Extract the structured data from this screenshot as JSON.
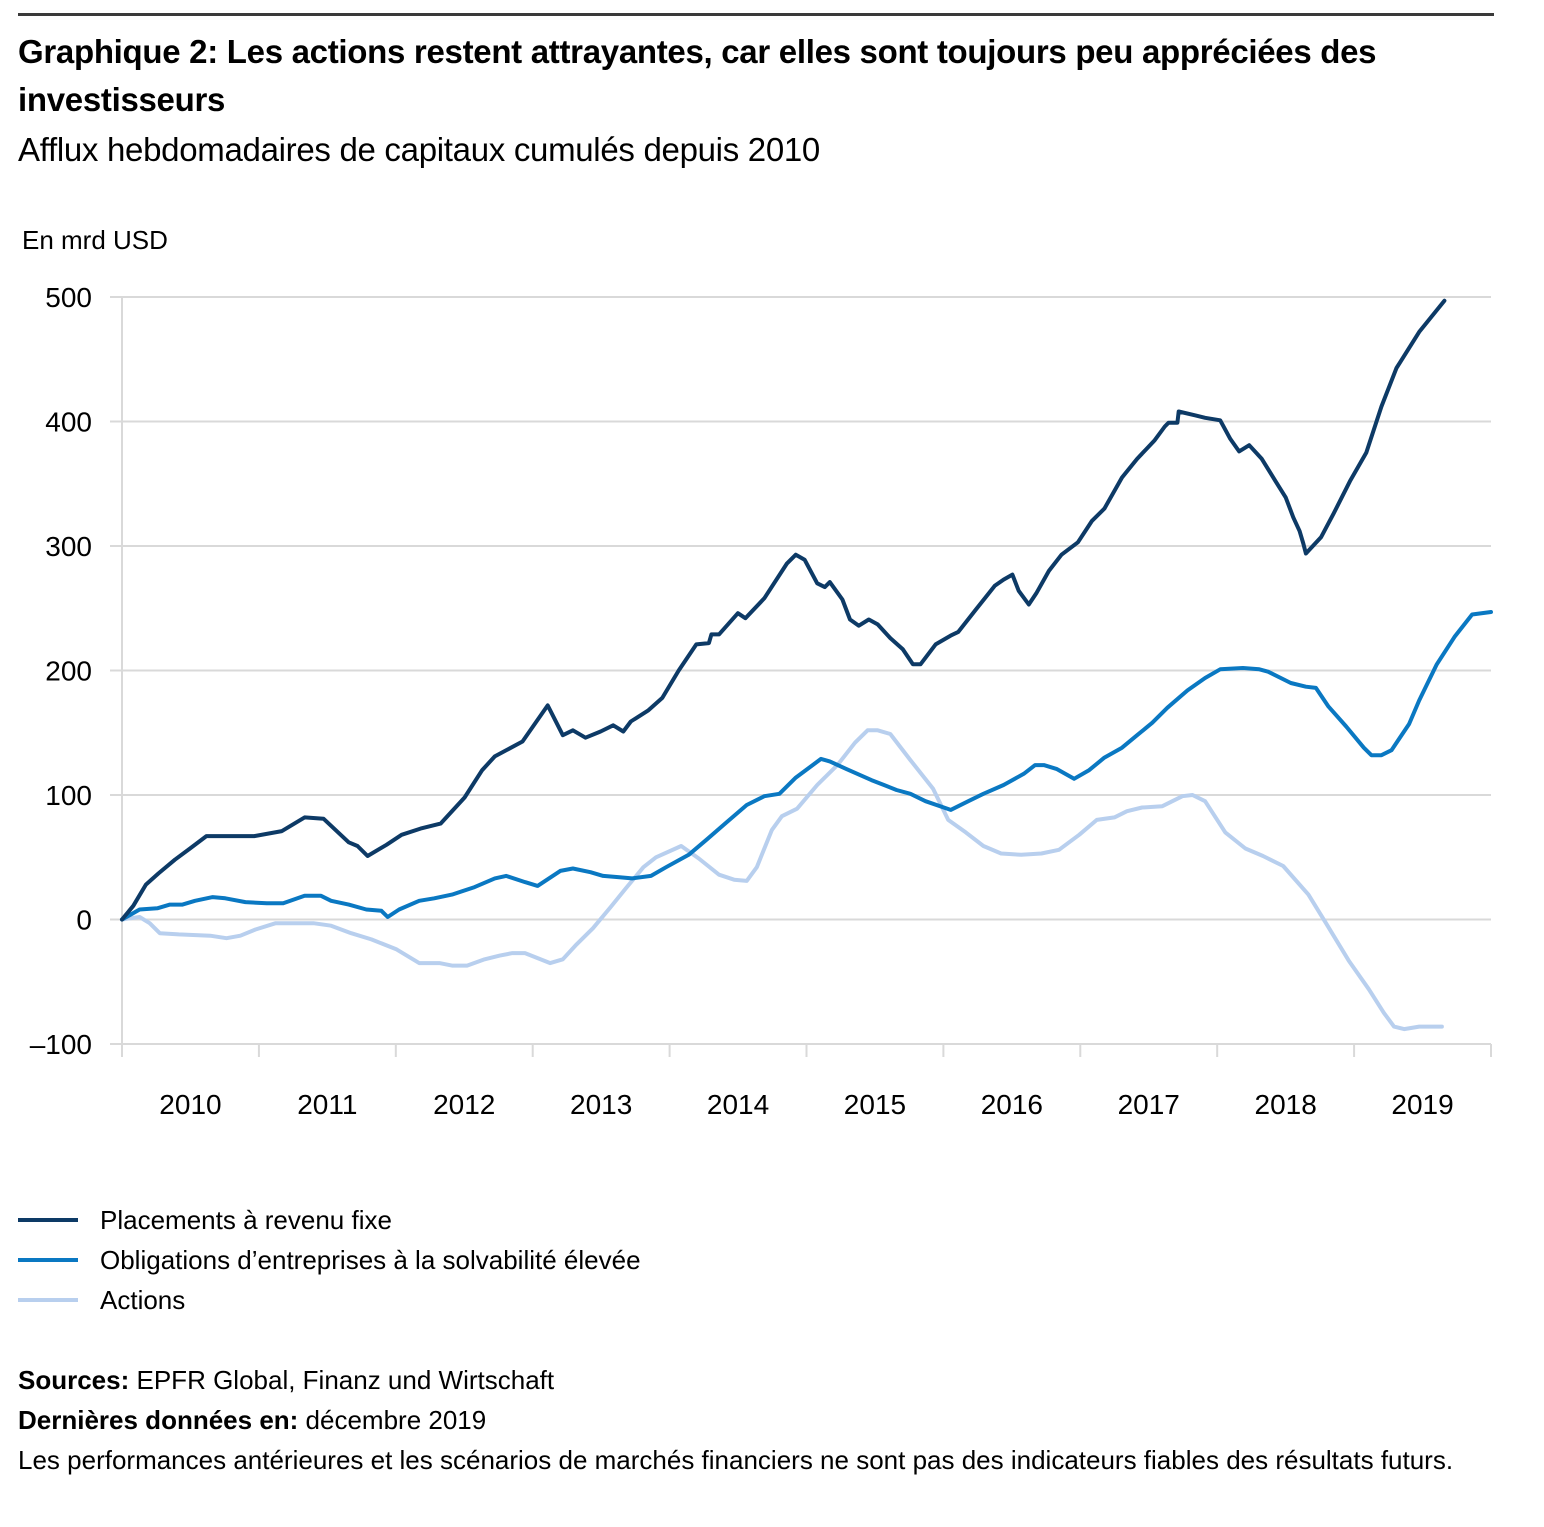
{
  "header": {
    "title": "Graphique 2: Les actions restent attrayantes, car elles sont toujours peu appréciées des investisseurs",
    "subtitle": "Afflux hebdomadaires de capitaux cumulés depuis 2010",
    "unit_label": "En mrd USD"
  },
  "footer": {
    "sources_label": "Sources:",
    "sources_value": "EPFR Global, Finanz und Wirtschaft",
    "latest_label": "Dernières données en:",
    "latest_value": "décembre 2019",
    "disclaimer": "Les performances antérieures et les scénarios de marchés financiers ne sont pas des indicateurs fiables des résultats futurs."
  },
  "chart_data": {
    "type": "line",
    "title": "Graphique 2: Les actions restent attrayantes, car elles sont toujours peu appréciées des investisseurs",
    "subtitle": "Afflux hebdomadaires de capitaux cumulés depuis 2010",
    "xlabel": "",
    "ylabel": "En mrd USD",
    "xlim": [
      2010.0,
      2020.0
    ],
    "ylim": [
      -100,
      500
    ],
    "yticks": [
      -100,
      0,
      100,
      200,
      300,
      400,
      500
    ],
    "ytick_labels": [
      "–100",
      "0",
      "100",
      "200",
      "300",
      "400",
      "500"
    ],
    "xticks": [
      2010,
      2011,
      2012,
      2013,
      2014,
      2015,
      2016,
      2017,
      2018,
      2019,
      2020
    ],
    "xtick_labels": [
      "2010",
      "2011",
      "2012",
      "2013",
      "2014",
      "2015",
      "2016",
      "2017",
      "2018",
      "2019"
    ],
    "grid": "horizontal",
    "legend_position": "bottom-left",
    "series": [
      {
        "name": "Placements à revenu fixe",
        "color": "#0d3a66",
        "points": [
          [
            2010.0,
            0
          ],
          [
            2010.09,
            11
          ],
          [
            2010.19,
            28
          ],
          [
            2010.29,
            37
          ],
          [
            2010.42,
            48
          ],
          [
            2010.54,
            57
          ],
          [
            2010.67,
            67
          ],
          [
            2010.85,
            67
          ],
          [
            2011.05,
            67
          ],
          [
            2011.27,
            71
          ],
          [
            2011.45,
            82
          ],
          [
            2011.6,
            81
          ],
          [
            2011.8,
            62
          ],
          [
            2011.87,
            59
          ],
          [
            2011.95,
            51
          ],
          [
            2012.1,
            60
          ],
          [
            2012.22,
            68
          ],
          [
            2012.37,
            73
          ],
          [
            2012.53,
            77
          ],
          [
            2012.72,
            98
          ],
          [
            2012.86,
            120
          ],
          [
            2012.96,
            131
          ],
          [
            2013.18,
            143
          ],
          [
            2013.38,
            172
          ],
          [
            2013.5,
            148
          ],
          [
            2013.58,
            152
          ],
          [
            2013.68,
            146
          ],
          [
            2013.8,
            151
          ],
          [
            2013.9,
            156
          ],
          [
            2013.98,
            151
          ],
          [
            2014.04,
            159
          ],
          [
            2014.18,
            168
          ],
          [
            2014.29,
            178
          ],
          [
            2014.42,
            200
          ],
          [
            2014.56,
            221
          ],
          [
            2014.66,
            222
          ],
          [
            2014.68,
            229
          ],
          [
            2014.74,
            229
          ],
          [
            2014.89,
            246
          ],
          [
            2014.95,
            242
          ],
          [
            2015.1,
            258
          ],
          [
            2015.28,
            286
          ],
          [
            2015.35,
            293
          ],
          [
            2015.42,
            289
          ],
          [
            2015.52,
            270
          ],
          [
            2015.58,
            267
          ],
          [
            2015.62,
            271
          ],
          [
            2015.72,
            257
          ],
          [
            2015.78,
            241
          ],
          [
            2015.85,
            236
          ],
          [
            2015.93,
            241
          ],
          [
            2016.0,
            237
          ],
          [
            2016.1,
            226
          ],
          [
            2016.2,
            217
          ],
          [
            2016.28,
            205
          ],
          [
            2016.34,
            205
          ],
          [
            2016.46,
            221
          ],
          [
            2016.58,
            228
          ],
          [
            2016.64,
            231
          ],
          [
            2016.78,
            249
          ],
          [
            2016.93,
            268
          ],
          [
            2017.0,
            273
          ],
          [
            2017.07,
            277
          ],
          [
            2017.12,
            264
          ],
          [
            2017.2,
            253
          ],
          [
            2017.26,
            262
          ],
          [
            2017.36,
            280
          ],
          [
            2017.46,
            293
          ],
          [
            2017.59,
            303
          ],
          [
            2017.7,
            320
          ],
          [
            2017.8,
            330
          ],
          [
            2017.94,
            355
          ],
          [
            2018.06,
            370
          ],
          [
            2018.2,
            385
          ],
          [
            2018.28,
            396
          ],
          [
            2018.31,
            399
          ],
          [
            2018.38,
            399
          ],
          [
            2018.39,
            408
          ],
          [
            2018.52,
            405
          ],
          [
            2018.6,
            403
          ],
          [
            2018.72,
            401
          ],
          [
            2018.8,
            386
          ],
          [
            2018.87,
            376
          ],
          [
            2018.95,
            381
          ],
          [
            2019.05,
            370
          ],
          [
            2019.16,
            352
          ],
          [
            2019.24,
            339
          ],
          [
            2019.3,
            323
          ],
          [
            2019.35,
            312
          ],
          [
            2019.38,
            302
          ],
          [
            2019.4,
            294
          ],
          [
            2019.52,
            307
          ],
          [
            2019.62,
            326
          ],
          [
            2019.75,
            352
          ],
          [
            2019.88,
            375
          ],
          [
            2020.0,
            412
          ],
          [
            2020.12,
            443
          ],
          [
            2020.3,
            472
          ],
          [
            2020.5,
            497
          ]
        ]
      },
      {
        "name": "Obligations d’entreprises à la solvabilité élevée",
        "color": "#0a78c2",
        "points": [
          [
            2010.0,
            0
          ],
          [
            2010.14,
            8
          ],
          [
            2010.28,
            9
          ],
          [
            2010.38,
            12
          ],
          [
            2010.48,
            12
          ],
          [
            2010.58,
            15
          ],
          [
            2010.72,
            18
          ],
          [
            2010.82,
            17
          ],
          [
            2010.98,
            14
          ],
          [
            2011.15,
            13
          ],
          [
            2011.28,
            13
          ],
          [
            2011.45,
            19
          ],
          [
            2011.58,
            19
          ],
          [
            2011.66,
            15
          ],
          [
            2011.8,
            12
          ],
          [
            2011.94,
            8
          ],
          [
            2012.06,
            7
          ],
          [
            2012.11,
            2
          ],
          [
            2012.2,
            8
          ],
          [
            2012.36,
            15
          ],
          [
            2012.48,
            17
          ],
          [
            2012.62,
            20
          ],
          [
            2012.8,
            26
          ],
          [
            2012.96,
            33
          ],
          [
            2013.05,
            35
          ],
          [
            2013.2,
            30
          ],
          [
            2013.3,
            27
          ],
          [
            2013.48,
            39
          ],
          [
            2013.58,
            41
          ],
          [
            2013.72,
            38
          ],
          [
            2013.82,
            35
          ],
          [
            2013.95,
            34
          ],
          [
            2014.05,
            33
          ],
          [
            2014.2,
            35
          ],
          [
            2014.32,
            42
          ],
          [
            2014.5,
            52
          ],
          [
            2014.64,
            64
          ],
          [
            2014.8,
            78
          ],
          [
            2014.96,
            92
          ],
          [
            2015.1,
            99
          ],
          [
            2015.22,
            101
          ],
          [
            2015.35,
            114
          ],
          [
            2015.55,
            129
          ],
          [
            2015.62,
            127
          ],
          [
            2015.75,
            121
          ],
          [
            2015.95,
            112
          ],
          [
            2016.05,
            108
          ],
          [
            2016.15,
            104
          ],
          [
            2016.26,
            101
          ],
          [
            2016.38,
            95
          ],
          [
            2016.58,
            88
          ],
          [
            2016.72,
            95
          ],
          [
            2016.84,
            101
          ],
          [
            2017.0,
            108
          ],
          [
            2017.16,
            117
          ],
          [
            2017.25,
            124
          ],
          [
            2017.32,
            124
          ],
          [
            2017.42,
            121
          ],
          [
            2017.56,
            113
          ],
          [
            2017.68,
            120
          ],
          [
            2017.8,
            130
          ],
          [
            2017.94,
            138
          ],
          [
            2018.06,
            148
          ],
          [
            2018.18,
            158
          ],
          [
            2018.3,
            170
          ],
          [
            2018.46,
            184
          ],
          [
            2018.6,
            194
          ],
          [
            2018.72,
            201
          ],
          [
            2018.9,
            202
          ],
          [
            2019.03,
            201
          ],
          [
            2019.1,
            199
          ],
          [
            2019.28,
            190
          ],
          [
            2019.4,
            187
          ],
          [
            2019.48,
            186
          ],
          [
            2019.58,
            171
          ],
          [
            2019.72,
            155
          ],
          [
            2019.86,
            138
          ],
          [
            2019.92,
            132
          ],
          [
            2020.0,
            132
          ],
          [
            2020.08,
            136
          ],
          [
            2020.22,
            157
          ],
          [
            2020.3,
            176
          ],
          [
            2020.44,
            205
          ],
          [
            2020.58,
            227
          ],
          [
            2020.72,
            245
          ],
          [
            2020.87,
            247
          ]
        ]
      },
      {
        "name": "Actions",
        "color": "#b8cfee",
        "points": [
          [
            2010.0,
            0
          ],
          [
            2010.14,
            2
          ],
          [
            2010.22,
            -3
          ],
          [
            2010.3,
            -11
          ],
          [
            2010.45,
            -12
          ],
          [
            2010.7,
            -13
          ],
          [
            2010.83,
            -15
          ],
          [
            2010.94,
            -13
          ],
          [
            2011.06,
            -8
          ],
          [
            2011.22,
            -3
          ],
          [
            2011.36,
            -3
          ],
          [
            2011.52,
            -3
          ],
          [
            2011.66,
            -5
          ],
          [
            2011.82,
            -11
          ],
          [
            2011.98,
            -16
          ],
          [
            2012.18,
            -24
          ],
          [
            2012.36,
            -35
          ],
          [
            2012.52,
            -35
          ],
          [
            2012.62,
            -37
          ],
          [
            2012.74,
            -37
          ],
          [
            2012.88,
            -32
          ],
          [
            2013.0,
            -29
          ],
          [
            2013.1,
            -27
          ],
          [
            2013.2,
            -27
          ],
          [
            2013.3,
            -31
          ],
          [
            2013.4,
            -35
          ],
          [
            2013.5,
            -32
          ],
          [
            2013.6,
            -21
          ],
          [
            2013.74,
            -7
          ],
          [
            2013.88,
            10
          ],
          [
            2014.0,
            25
          ],
          [
            2014.14,
            42
          ],
          [
            2014.24,
            50
          ],
          [
            2014.44,
            59
          ],
          [
            2014.58,
            49
          ],
          [
            2014.74,
            36
          ],
          [
            2014.86,
            32
          ],
          [
            2014.96,
            31
          ],
          [
            2015.04,
            42
          ],
          [
            2015.16,
            72
          ],
          [
            2015.24,
            83
          ],
          [
            2015.36,
            89
          ],
          [
            2015.52,
            108
          ],
          [
            2015.68,
            124
          ],
          [
            2015.82,
            142
          ],
          [
            2015.92,
            152
          ],
          [
            2016.0,
            152
          ],
          [
            2016.1,
            149
          ],
          [
            2016.26,
            128
          ],
          [
            2016.44,
            105
          ],
          [
            2016.56,
            80
          ],
          [
            2016.7,
            70
          ],
          [
            2016.84,
            59
          ],
          [
            2016.98,
            53
          ],
          [
            2017.14,
            52
          ],
          [
            2017.3,
            53
          ],
          [
            2017.44,
            56
          ],
          [
            2017.6,
            68
          ],
          [
            2017.74,
            80
          ],
          [
            2017.88,
            82
          ],
          [
            2017.98,
            87
          ],
          [
            2018.1,
            90
          ],
          [
            2018.26,
            91
          ],
          [
            2018.42,
            99
          ],
          [
            2018.5,
            100
          ],
          [
            2018.6,
            95
          ],
          [
            2018.76,
            70
          ],
          [
            2018.92,
            57
          ],
          [
            2019.06,
            51
          ],
          [
            2019.22,
            43
          ],
          [
            2019.42,
            20
          ],
          [
            2019.56,
            -3
          ],
          [
            2019.74,
            -33
          ],
          [
            2019.9,
            -56
          ],
          [
            2020.02,
            -75
          ],
          [
            2020.1,
            -86
          ],
          [
            2020.18,
            -88
          ],
          [
            2020.3,
            -86
          ],
          [
            2020.48,
            -86
          ]
        ]
      }
    ]
  }
}
